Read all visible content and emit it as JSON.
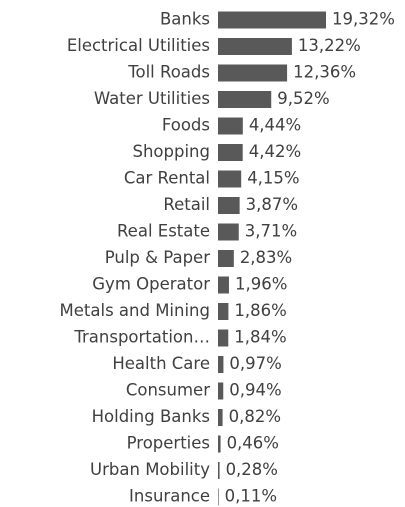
{
  "chart_data": {
    "type": "bar",
    "orientation": "horizontal",
    "color": "#595959",
    "categories": [
      "Banks",
      "Electrical Utilities",
      "Toll Roads",
      "Water Utilities",
      "Foods",
      "Shopping",
      "Car Rental",
      "Retail",
      "Real Estate",
      "Pulp & Paper",
      "Gym Operator",
      "Metals and Mining",
      "Transportation…",
      "Health Care",
      "Consumer",
      "Holding Banks",
      "Properties",
      "Urban Mobility",
      "Insurance"
    ],
    "values": [
      19.32,
      13.22,
      12.36,
      9.52,
      4.44,
      4.42,
      4.15,
      3.87,
      3.71,
      2.83,
      1.96,
      1.86,
      1.84,
      0.97,
      0.94,
      0.82,
      0.46,
      0.28,
      0.11
    ],
    "value_labels": [
      "19,32%",
      "13,22%",
      "12,36%",
      "9,52%",
      "4,44%",
      "4,42%",
      "4,15%",
      "3,87%",
      "3,71%",
      "2,83%",
      "1,96%",
      "1,86%",
      "1,84%",
      "0,97%",
      "0,94%",
      "0,82%",
      "0,46%",
      "0,28%",
      "0,11%"
    ]
  }
}
